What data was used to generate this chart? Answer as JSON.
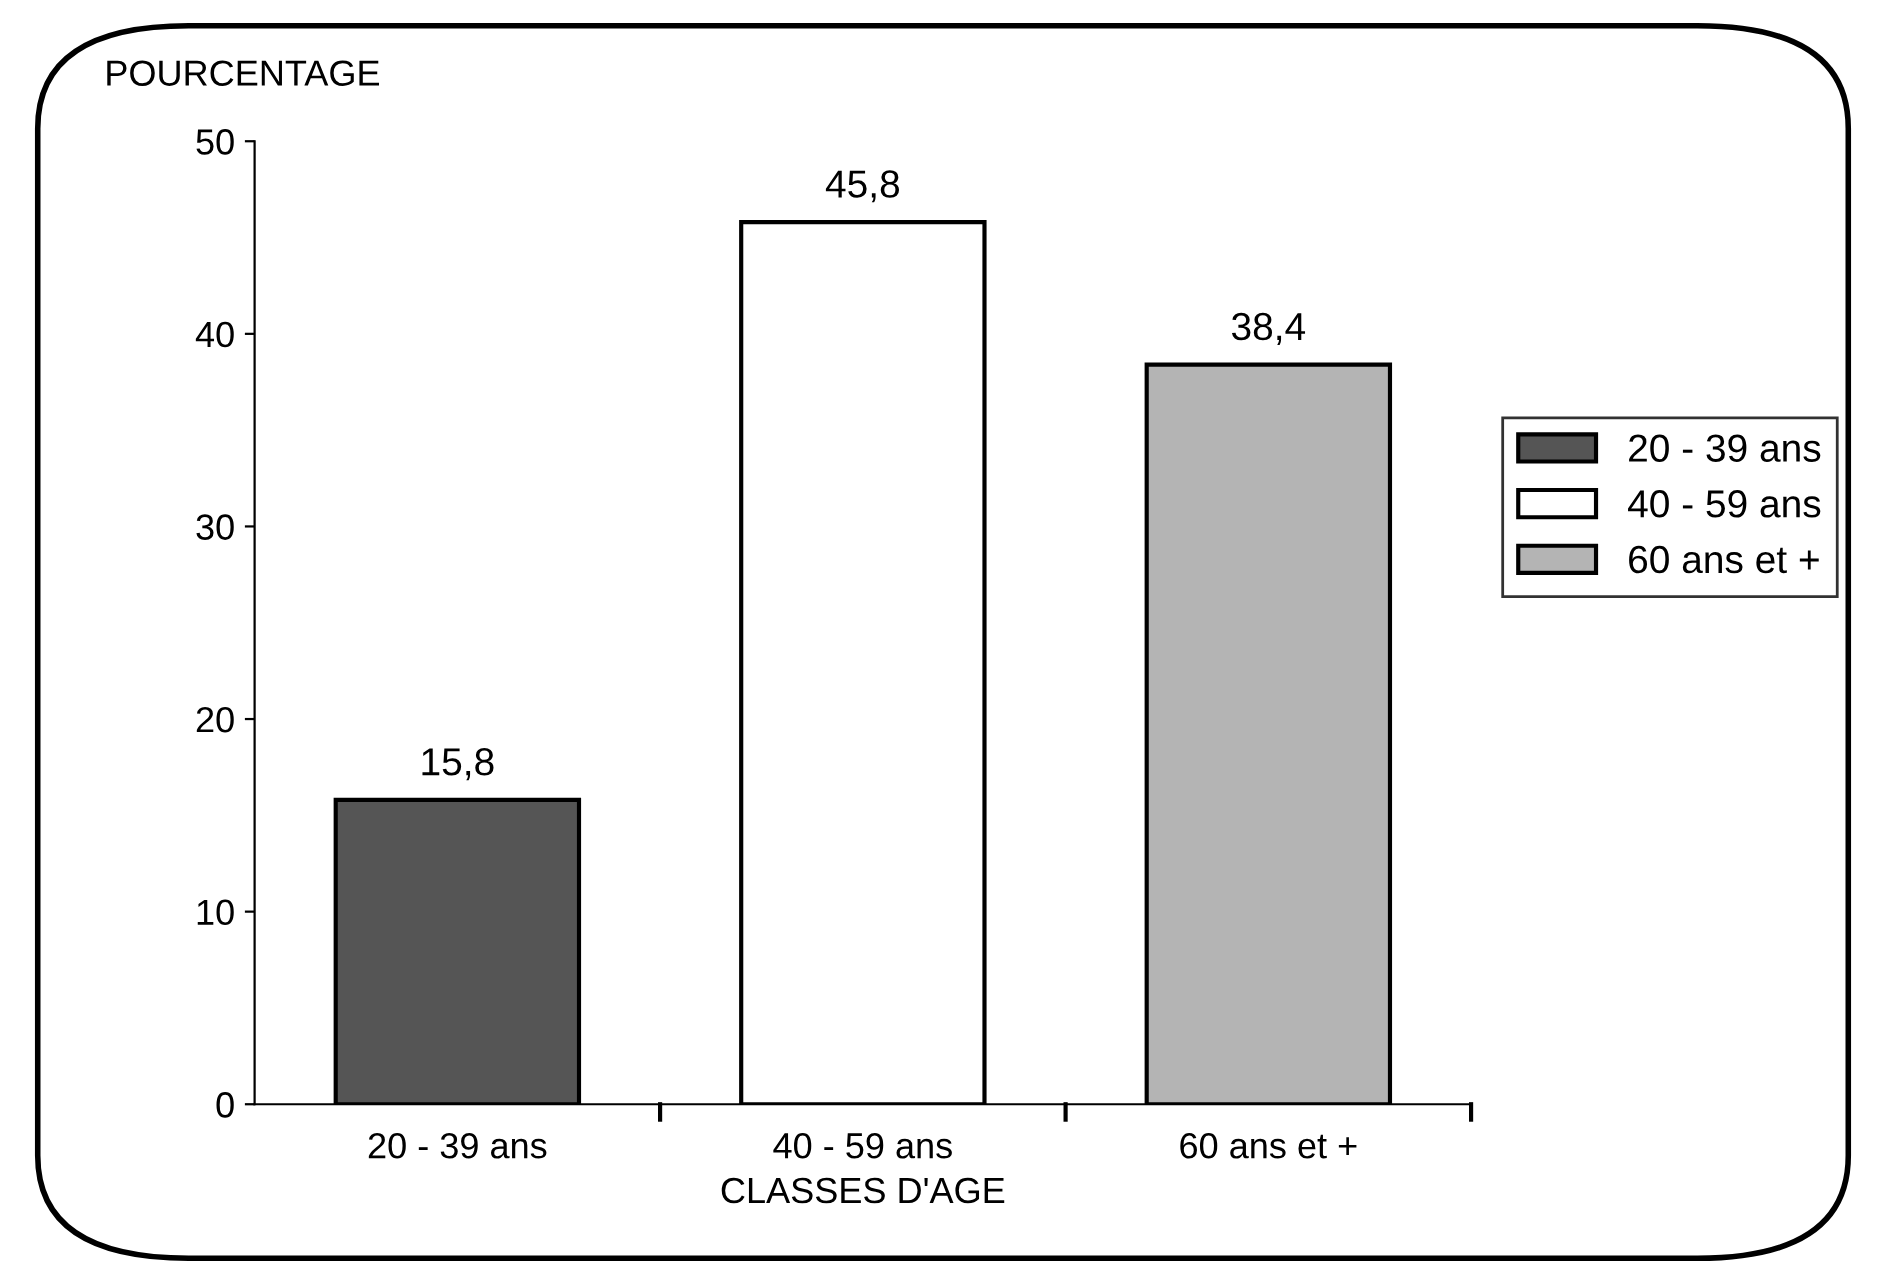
{
  "chart_data": {
    "type": "bar",
    "ylabel": "POURCENTAGE",
    "xlabel": "CLASSES D'AGE",
    "categories": [
      "20 - 39 ans",
      "40 - 59 ans",
      "60 ans et +"
    ],
    "series": [
      {
        "name": "20 - 39 ans",
        "color": "#555555",
        "values": [
          15.8,
          null,
          null
        ],
        "value_labels": [
          "15,8",
          null,
          null
        ]
      },
      {
        "name": "40 - 59 ans",
        "color": "#ffffff",
        "values": [
          null,
          45.8,
          null
        ],
        "value_labels": [
          null,
          "45,8",
          null
        ]
      },
      {
        "name": "60 ans et +",
        "color": "#b4b4b4",
        "values": [
          null,
          null,
          38.4
        ],
        "value_labels": [
          null,
          null,
          "38,4"
        ]
      }
    ],
    "ylim": [
      0,
      50
    ],
    "yticks": [
      0,
      10,
      20,
      30,
      40,
      50
    ],
    "grid": false,
    "legend": "right"
  }
}
